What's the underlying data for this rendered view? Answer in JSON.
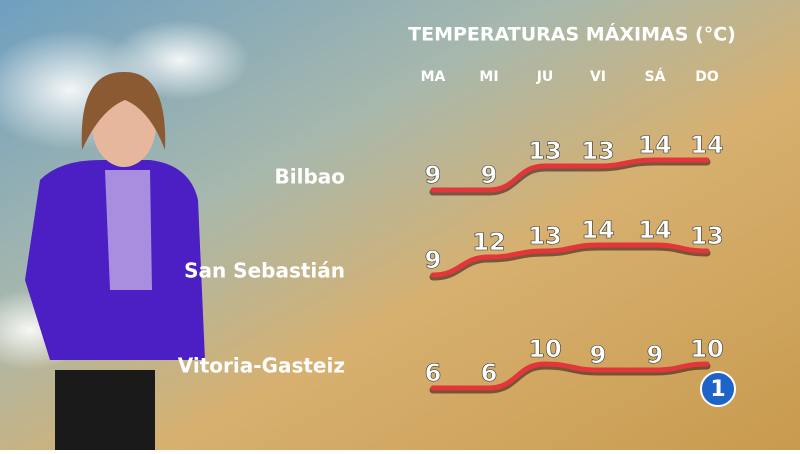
{
  "chart_data": {
    "type": "line",
    "title": "TEMPERATURAS MÁXIMAS (°C)",
    "categories": [
      "MA",
      "MI",
      "JU",
      "VI",
      "SÁ",
      "DO"
    ],
    "series": [
      {
        "name": "Bilbao",
        "color": "#e2363a",
        "values": [
          9,
          9,
          13,
          13,
          14,
          14
        ]
      },
      {
        "name": "San Sebastián",
        "color": "#e2363a",
        "values": [
          9,
          12,
          13,
          14,
          14,
          13
        ]
      },
      {
        "name": "Vitoria-Gasteiz",
        "color": "#e2363a",
        "values": [
          6,
          6,
          10,
          9,
          9,
          10
        ]
      }
    ]
  },
  "logo": "1"
}
